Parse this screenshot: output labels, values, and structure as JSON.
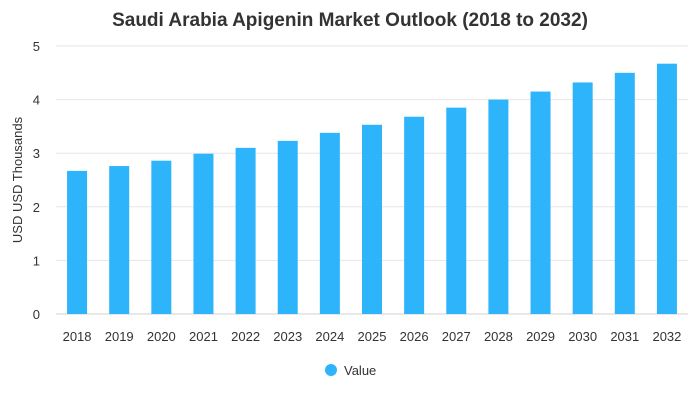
{
  "chart_data": {
    "type": "bar",
    "title": "Saudi Arabia Apigenin Market Outlook (2018 to 2032)",
    "xlabel": "",
    "ylabel": "USD USD Thousands",
    "categories": [
      "2018",
      "2019",
      "2020",
      "2021",
      "2022",
      "2023",
      "2024",
      "2025",
      "2026",
      "2027",
      "2028",
      "2029",
      "2030",
      "2031",
      "2032"
    ],
    "series": [
      {
        "name": "Value",
        "color": "#2eb4fb",
        "values": [
          2.67,
          2.76,
          2.86,
          2.99,
          3.1,
          3.23,
          3.38,
          3.53,
          3.68,
          3.85,
          4.0,
          4.15,
          4.32,
          4.5,
          4.67
        ]
      }
    ],
    "ylim": [
      0,
      5
    ],
    "yticks": [
      "0",
      "1",
      "2",
      "3",
      "4",
      "5"
    ],
    "grid": true,
    "legend": "bottom-center"
  }
}
